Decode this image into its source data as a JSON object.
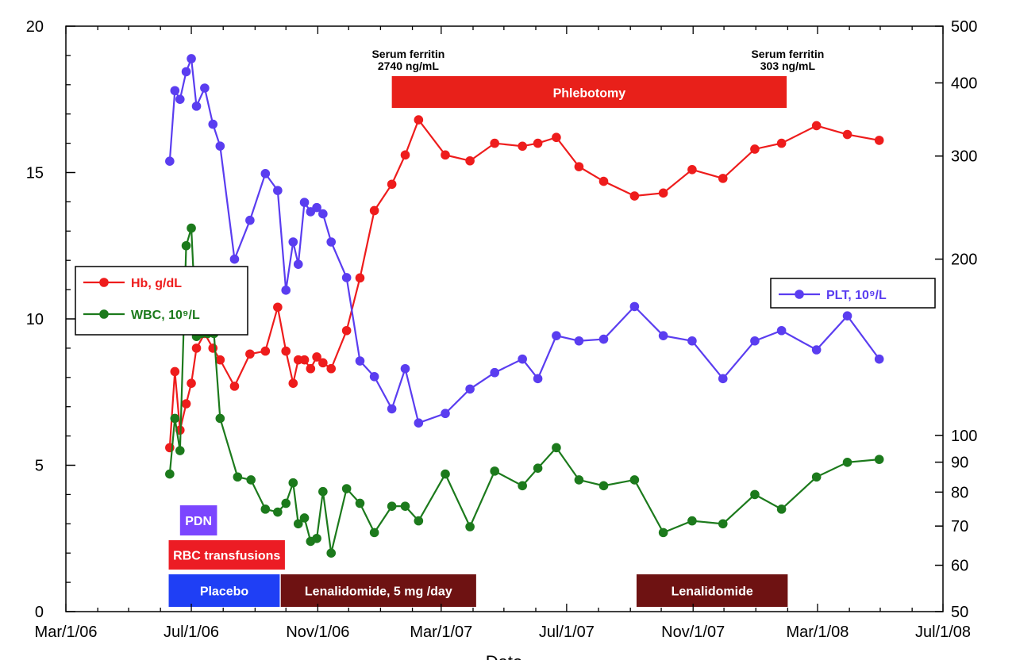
{
  "chart_data": {
    "type": "line",
    "xlabel": "Date",
    "x_ticks": [
      "Mar/1/06",
      "Jul/1/06",
      "Nov/1/06",
      "Mar/1/07",
      "Jul/1/07",
      "Nov/1/07",
      "Mar/1/08",
      "Jul/1/08"
    ],
    "x_range": [
      "2006-03-01",
      "2008-07-01"
    ],
    "y_left": {
      "range": [
        0,
        20
      ],
      "ticks": [
        "0",
        "5",
        "10",
        "15",
        "20"
      ]
    },
    "y_right": {
      "scale": "log",
      "range": [
        50,
        500
      ],
      "ticks": [
        "50",
        "60",
        "70",
        "80",
        "90",
        "100",
        "200",
        "300",
        "400",
        "500"
      ]
    },
    "grid": false,
    "series": [
      {
        "name": "Hb, g/dL",
        "axis": "left",
        "color": "#ee1c1c",
        "points": [
          [
            "2006-06-10",
            5.6
          ],
          [
            "2006-06-15",
            8.2
          ],
          [
            "2006-06-20",
            6.2
          ],
          [
            "2006-06-26",
            7.1
          ],
          [
            "2006-07-01",
            7.8
          ],
          [
            "2006-07-06",
            9.0
          ],
          [
            "2006-07-14",
            9.5
          ],
          [
            "2006-07-22",
            9.0
          ],
          [
            "2006-07-29",
            8.6
          ],
          [
            "2006-08-12",
            7.7
          ],
          [
            "2006-08-27",
            8.8
          ],
          [
            "2006-09-11",
            8.9
          ],
          [
            "2006-09-23",
            10.4
          ],
          [
            "2006-10-01",
            8.9
          ],
          [
            "2006-10-08",
            7.8
          ],
          [
            "2006-10-13",
            8.6
          ],
          [
            "2006-10-19",
            8.6
          ],
          [
            "2006-10-25",
            8.3
          ],
          [
            "2006-10-31",
            8.7
          ],
          [
            "2006-11-06",
            8.5
          ],
          [
            "2006-11-14",
            8.3
          ],
          [
            "2006-11-29",
            9.6
          ],
          [
            "2006-12-12",
            11.4
          ],
          [
            "2006-12-26",
            13.7
          ],
          [
            "2007-01-12",
            14.6
          ],
          [
            "2007-01-25",
            15.6
          ],
          [
            "2007-02-07",
            16.8
          ],
          [
            "2007-03-05",
            15.6
          ],
          [
            "2007-03-29",
            15.4
          ],
          [
            "2007-04-22",
            16.0
          ],
          [
            "2007-05-19",
            15.9
          ],
          [
            "2007-06-03",
            16.0
          ],
          [
            "2007-06-21",
            16.2
          ],
          [
            "2007-07-13",
            15.2
          ],
          [
            "2007-08-06",
            14.7
          ],
          [
            "2007-09-05",
            14.2
          ],
          [
            "2007-10-03",
            14.3
          ],
          [
            "2007-10-31",
            15.1
          ],
          [
            "2007-11-30",
            14.8
          ],
          [
            "2007-12-31",
            15.8
          ],
          [
            "2008-01-26",
            16.0
          ],
          [
            "2008-02-29",
            16.6
          ],
          [
            "2008-03-30",
            16.3
          ],
          [
            "2008-04-30",
            16.1
          ]
        ]
      },
      {
        "name": "WBC, 10⁹/L",
        "axis": "left",
        "color": "#1c7a1c",
        "points": [
          [
            "2006-06-10",
            4.7
          ],
          [
            "2006-06-15",
            6.6
          ],
          [
            "2006-06-20",
            5.5
          ],
          [
            "2006-06-26",
            12.5
          ],
          [
            "2006-07-01",
            13.1
          ],
          [
            "2006-07-06",
            9.4
          ],
          [
            "2006-07-11",
            9.5
          ],
          [
            "2006-07-17",
            9.5
          ],
          [
            "2006-07-23",
            9.5
          ],
          [
            "2006-07-29",
            6.6
          ],
          [
            "2006-08-15",
            4.6
          ],
          [
            "2006-08-28",
            4.5
          ],
          [
            "2006-09-11",
            3.5
          ],
          [
            "2006-09-23",
            3.4
          ],
          [
            "2006-10-01",
            3.7
          ],
          [
            "2006-10-08",
            4.4
          ],
          [
            "2006-10-13",
            3.0
          ],
          [
            "2006-10-19",
            3.2
          ],
          [
            "2006-10-25",
            2.4
          ],
          [
            "2006-10-31",
            2.5
          ],
          [
            "2006-11-06",
            4.1
          ],
          [
            "2006-11-14",
            2.0
          ],
          [
            "2006-11-29",
            4.2
          ],
          [
            "2006-12-12",
            3.7
          ],
          [
            "2006-12-26",
            2.7
          ],
          [
            "2007-01-12",
            3.6
          ],
          [
            "2007-01-25",
            3.6
          ],
          [
            "2007-02-07",
            3.1
          ],
          [
            "2007-03-05",
            4.7
          ],
          [
            "2007-03-29",
            2.9
          ],
          [
            "2007-04-22",
            4.8
          ],
          [
            "2007-05-19",
            4.3
          ],
          [
            "2007-06-03",
            4.9
          ],
          [
            "2007-06-21",
            5.6
          ],
          [
            "2007-07-13",
            4.5
          ],
          [
            "2007-08-06",
            4.3
          ],
          [
            "2007-09-05",
            4.5
          ],
          [
            "2007-10-03",
            2.7
          ],
          [
            "2007-10-31",
            3.1
          ],
          [
            "2007-11-30",
            3.0
          ],
          [
            "2007-12-31",
            4.0
          ],
          [
            "2008-01-26",
            3.5
          ],
          [
            "2008-02-29",
            4.6
          ],
          [
            "2008-03-30",
            5.1
          ],
          [
            "2008-04-30",
            5.2
          ]
        ]
      },
      {
        "name": "PLT, 10⁹/L",
        "axis": "right",
        "color": "#5a3df0",
        "points": [
          [
            "2006-06-10",
            294
          ],
          [
            "2006-06-15",
            388
          ],
          [
            "2006-06-20",
            375
          ],
          [
            "2006-06-26",
            418
          ],
          [
            "2006-07-01",
            440
          ],
          [
            "2006-07-06",
            365
          ],
          [
            "2006-07-14",
            392
          ],
          [
            "2006-07-22",
            340
          ],
          [
            "2006-07-29",
            312
          ],
          [
            "2006-08-12",
            200
          ],
          [
            "2006-08-27",
            233
          ],
          [
            "2006-09-11",
            280
          ],
          [
            "2006-09-23",
            262
          ],
          [
            "2006-10-01",
            177
          ],
          [
            "2006-10-08",
            214
          ],
          [
            "2006-10-13",
            196
          ],
          [
            "2006-10-19",
            250
          ],
          [
            "2006-10-25",
            241
          ],
          [
            "2006-10-31",
            245
          ],
          [
            "2006-11-06",
            239
          ],
          [
            "2006-11-14",
            214
          ],
          [
            "2006-11-29",
            186
          ],
          [
            "2006-12-12",
            134
          ],
          [
            "2006-12-26",
            126
          ],
          [
            "2007-01-12",
            111
          ],
          [
            "2007-01-25",
            130
          ],
          [
            "2007-02-07",
            105
          ],
          [
            "2007-03-05",
            109
          ],
          [
            "2007-03-29",
            120
          ],
          [
            "2007-04-22",
            128
          ],
          [
            "2007-05-19",
            135
          ],
          [
            "2007-06-03",
            125
          ],
          [
            "2007-06-21",
            148
          ],
          [
            "2007-07-13",
            145
          ],
          [
            "2007-08-06",
            146
          ],
          [
            "2007-09-05",
            166
          ],
          [
            "2007-10-03",
            148
          ],
          [
            "2007-10-31",
            145
          ],
          [
            "2007-11-30",
            125
          ],
          [
            "2007-12-31",
            145
          ],
          [
            "2008-01-26",
            151
          ],
          [
            "2008-02-29",
            140
          ],
          [
            "2008-03-30",
            160
          ],
          [
            "2008-04-30",
            135
          ]
        ]
      }
    ],
    "bars": [
      {
        "label": "Phlebotomy",
        "start": "2007-01-12",
        "end": "2008-01-31",
        "color": "#e8201a",
        "row": "top"
      },
      {
        "label": "PDN",
        "start": "2006-06-20",
        "end": "2006-07-26",
        "color": "#7b46ff",
        "row": "pdn"
      },
      {
        "label": "RBC transfusions",
        "start": "2006-06-09",
        "end": "2006-09-30",
        "color": "#ec1c24",
        "row": "rbc"
      },
      {
        "label": "Placebo",
        "start": "2006-06-09",
        "end": "2006-09-25",
        "color": "#1f3ff5",
        "row": "bottom"
      },
      {
        "label": "Lenalidomide, 5 mg /day",
        "start": "2006-09-26",
        "end": "2007-04-04",
        "color": "#6e1212",
        "row": "bottom"
      },
      {
        "label": "Lenalidomide",
        "start": "2007-09-07",
        "end": "2008-02-01",
        "color": "#6e1212",
        "row": "bottom"
      }
    ],
    "annotations": [
      {
        "lines": [
          "Serum ferritin",
          "2740 ng/mL"
        ],
        "date": "2007-01-28"
      },
      {
        "lines": [
          "Serum ferritin",
          "303 ng/mL"
        ],
        "date": "2008-02-01"
      }
    ],
    "legends": [
      {
        "position": "left-middle",
        "entries": [
          "Hb, g/dL",
          "WBC, 10⁹/L"
        ]
      },
      {
        "position": "right-middle",
        "entries": [
          "PLT, 10⁹/L"
        ]
      }
    ]
  }
}
